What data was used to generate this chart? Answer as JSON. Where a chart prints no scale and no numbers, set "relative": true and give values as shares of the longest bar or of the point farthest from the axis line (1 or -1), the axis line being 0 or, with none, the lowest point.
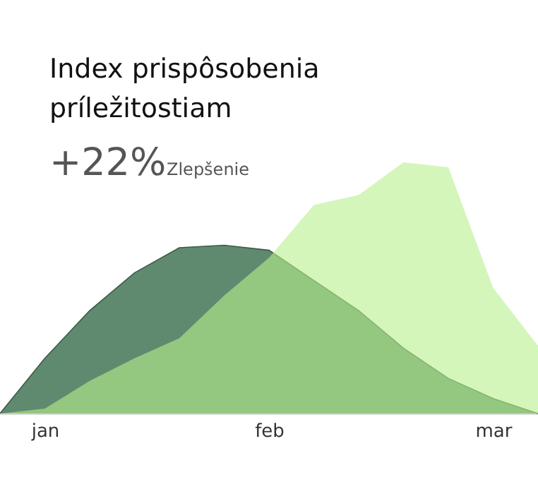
{
  "chart_data": {
    "type": "area",
    "title": "Index prispôsobenia\npríležitostiam",
    "annotations": [
      "+22%",
      "Zlepšenie"
    ],
    "relative": true,
    "categories": [
      null,
      "jan",
      null,
      null,
      null,
      null,
      "feb",
      null,
      null,
      null,
      null,
      "mar",
      null
    ],
    "series": [
      {
        "color": "#5f8a6f",
        "values": [
          0,
          0.22,
          0.41,
          0.56,
          0.66,
          0.67,
          0.65,
          0.53,
          0.41,
          0.26,
          0.14,
          0.06,
          0
        ]
      },
      {
        "color": "#b8f08c",
        "values": [
          0,
          0.02,
          0.13,
          0.22,
          0.3,
          0.47,
          0.62,
          0.83,
          0.87,
          1,
          0.98,
          0.5,
          0.27
        ]
      }
    ],
    "grid": false,
    "legend": false
  }
}
